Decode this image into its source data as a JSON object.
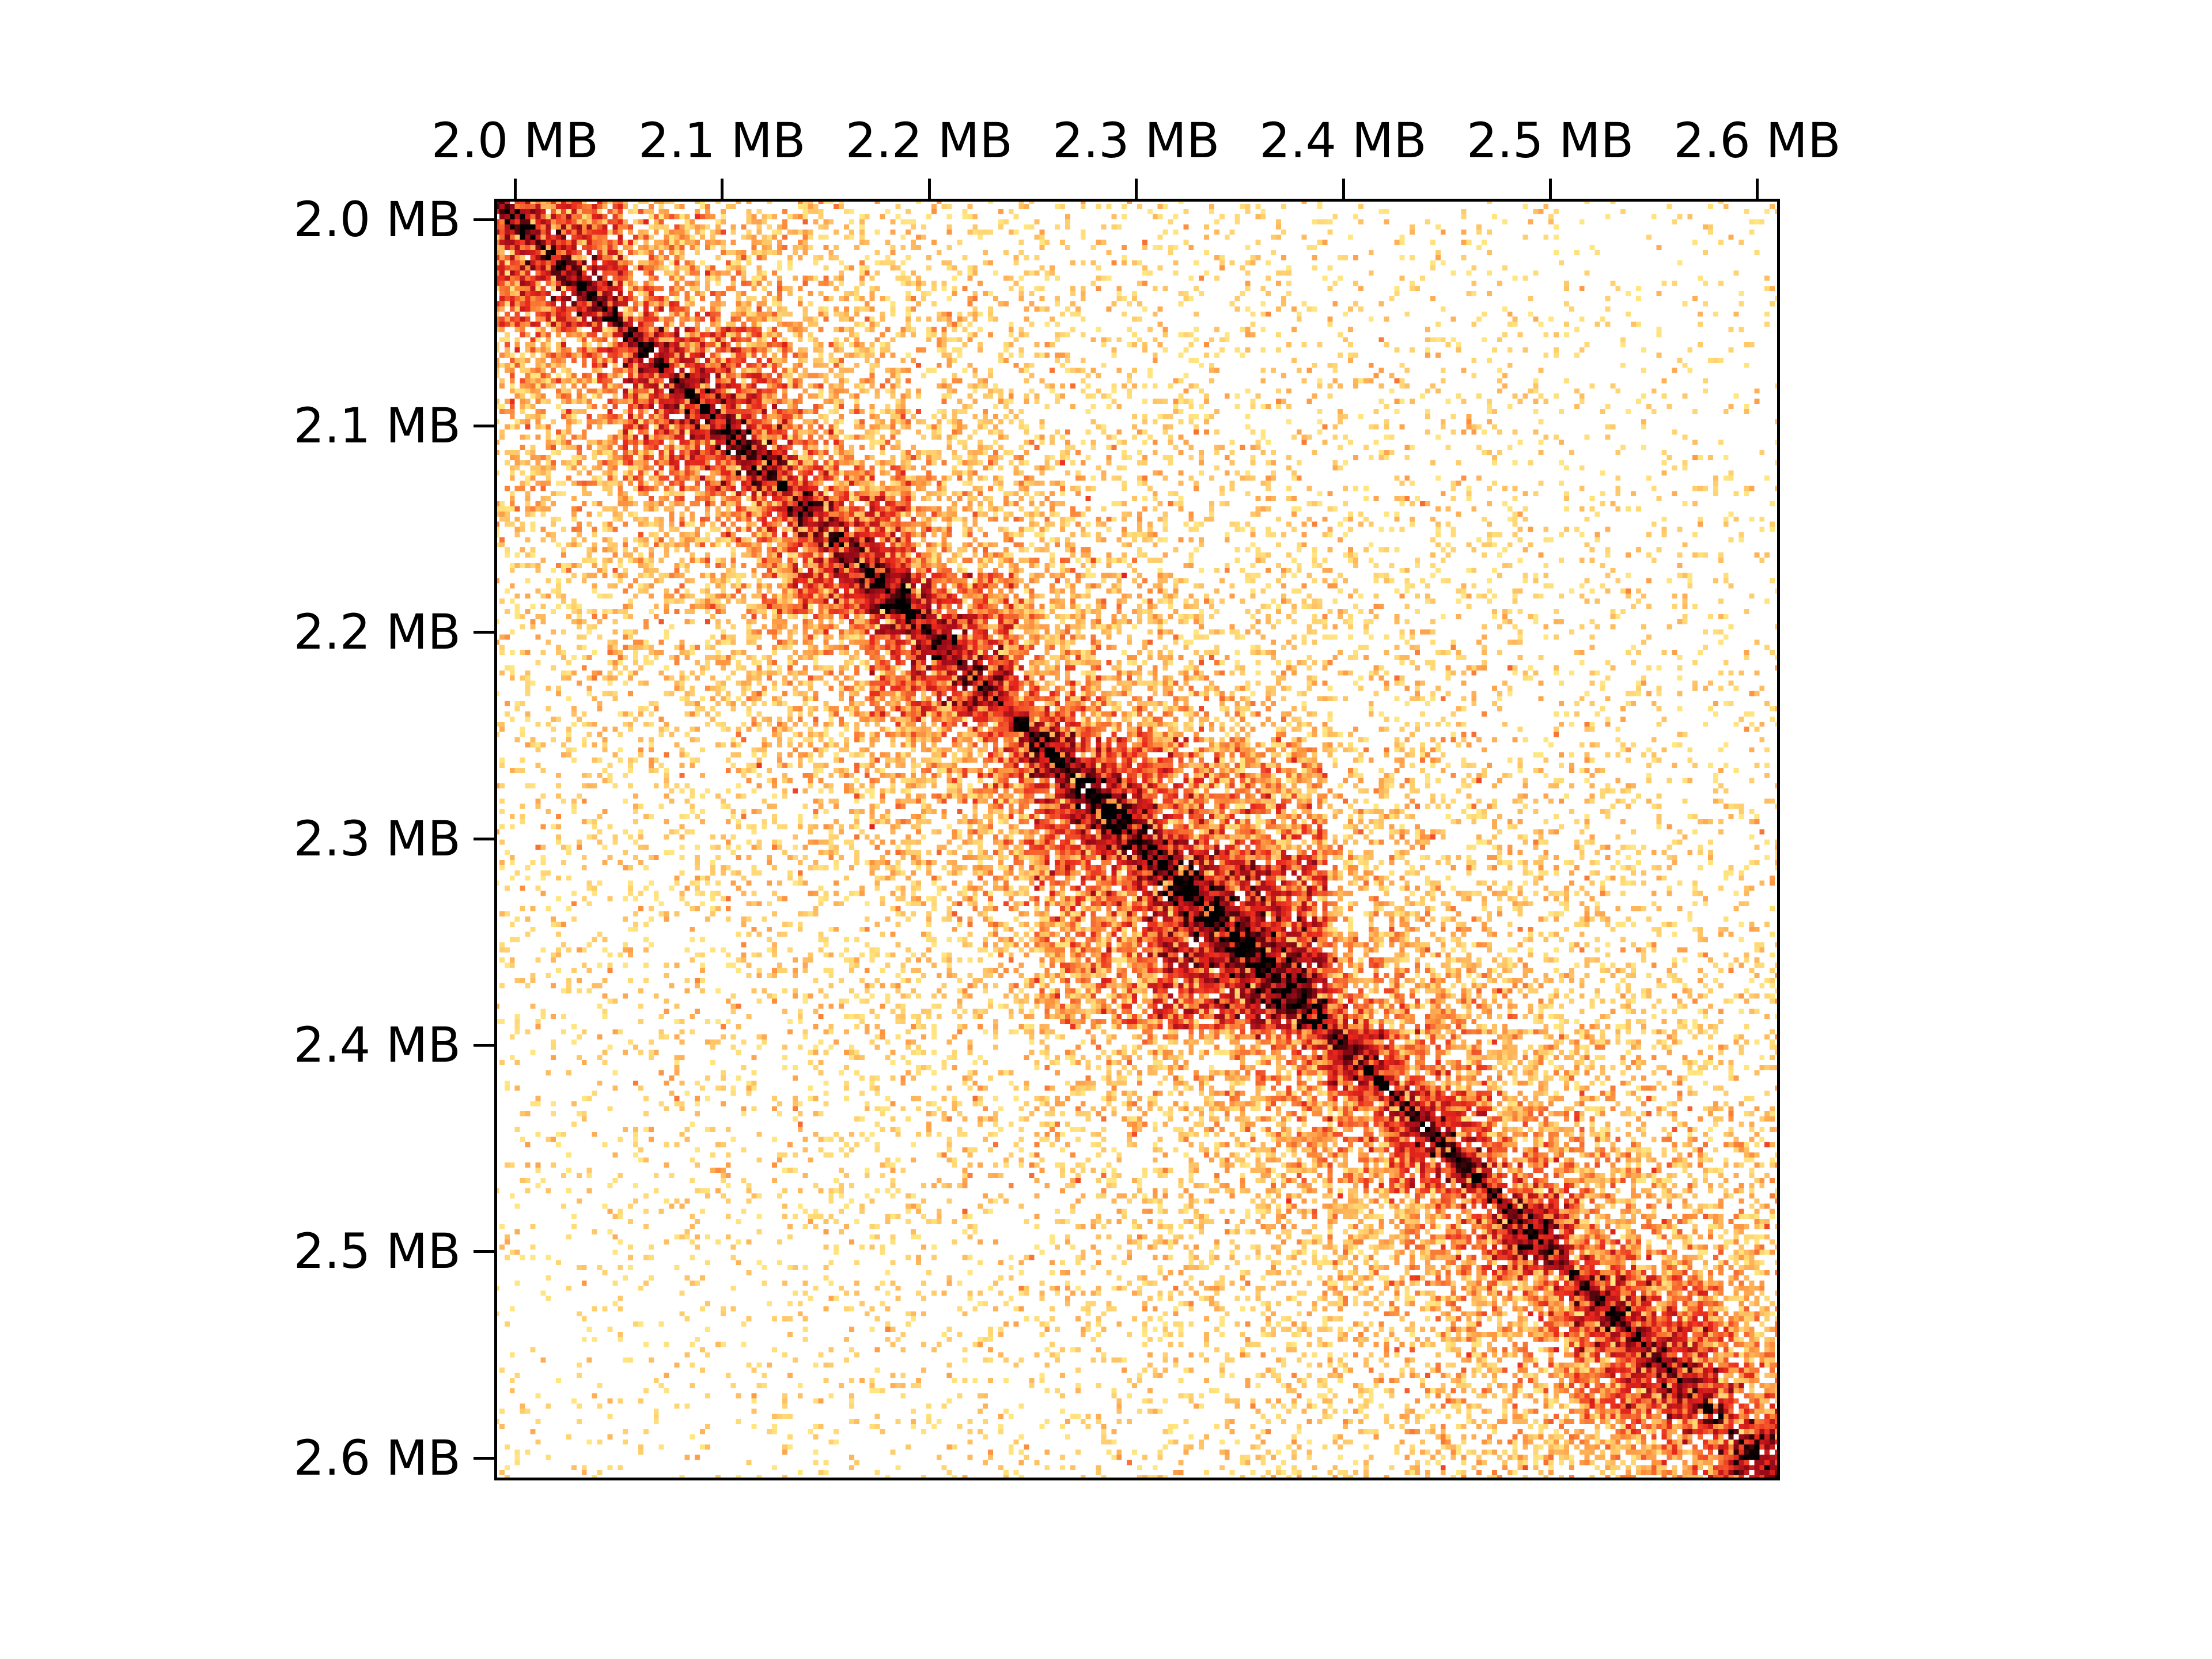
{
  "chart_data": {
    "type": "heatmap",
    "title": "",
    "xlabel": "",
    "ylabel": "",
    "x_axis_position": "top",
    "extent_mb": [
      1.99,
      2.611
    ],
    "x_ticks": [
      2.0,
      2.1,
      2.2,
      2.3,
      2.4,
      2.5,
      2.6
    ],
    "x_tick_labels": [
      "2.0 MB",
      "2.1 MB",
      "2.2 MB",
      "2.3 MB",
      "2.4 MB",
      "2.5 MB",
      "2.6 MB"
    ],
    "y_ticks": [
      2.0,
      2.1,
      2.2,
      2.3,
      2.4,
      2.5,
      2.6
    ],
    "y_tick_labels": [
      "2.0 MB",
      "2.1 MB",
      "2.2 MB",
      "2.3 MB",
      "2.4 MB",
      "2.5 MB",
      "2.6 MB"
    ],
    "colormap": [
      "#ffffff",
      "#ffe680",
      "#fd8d3c",
      "#e8261c",
      "#9e0b19",
      "#000000"
    ],
    "symmetric": true,
    "diagonal_domains_mb": [
      [
        1.99,
        2.05
      ],
      [
        2.05,
        2.13
      ],
      [
        2.13,
        2.19
      ],
      [
        2.17,
        2.24
      ],
      [
        2.24,
        2.27
      ],
      [
        2.27,
        2.305
      ],
      [
        2.305,
        2.39
      ],
      [
        2.25,
        2.39
      ],
      [
        2.39,
        2.42
      ],
      [
        2.42,
        2.47
      ],
      [
        2.47,
        2.51
      ],
      [
        2.51,
        2.58
      ],
      [
        2.58,
        2.611
      ]
    ],
    "grid": false,
    "legend": "none"
  }
}
